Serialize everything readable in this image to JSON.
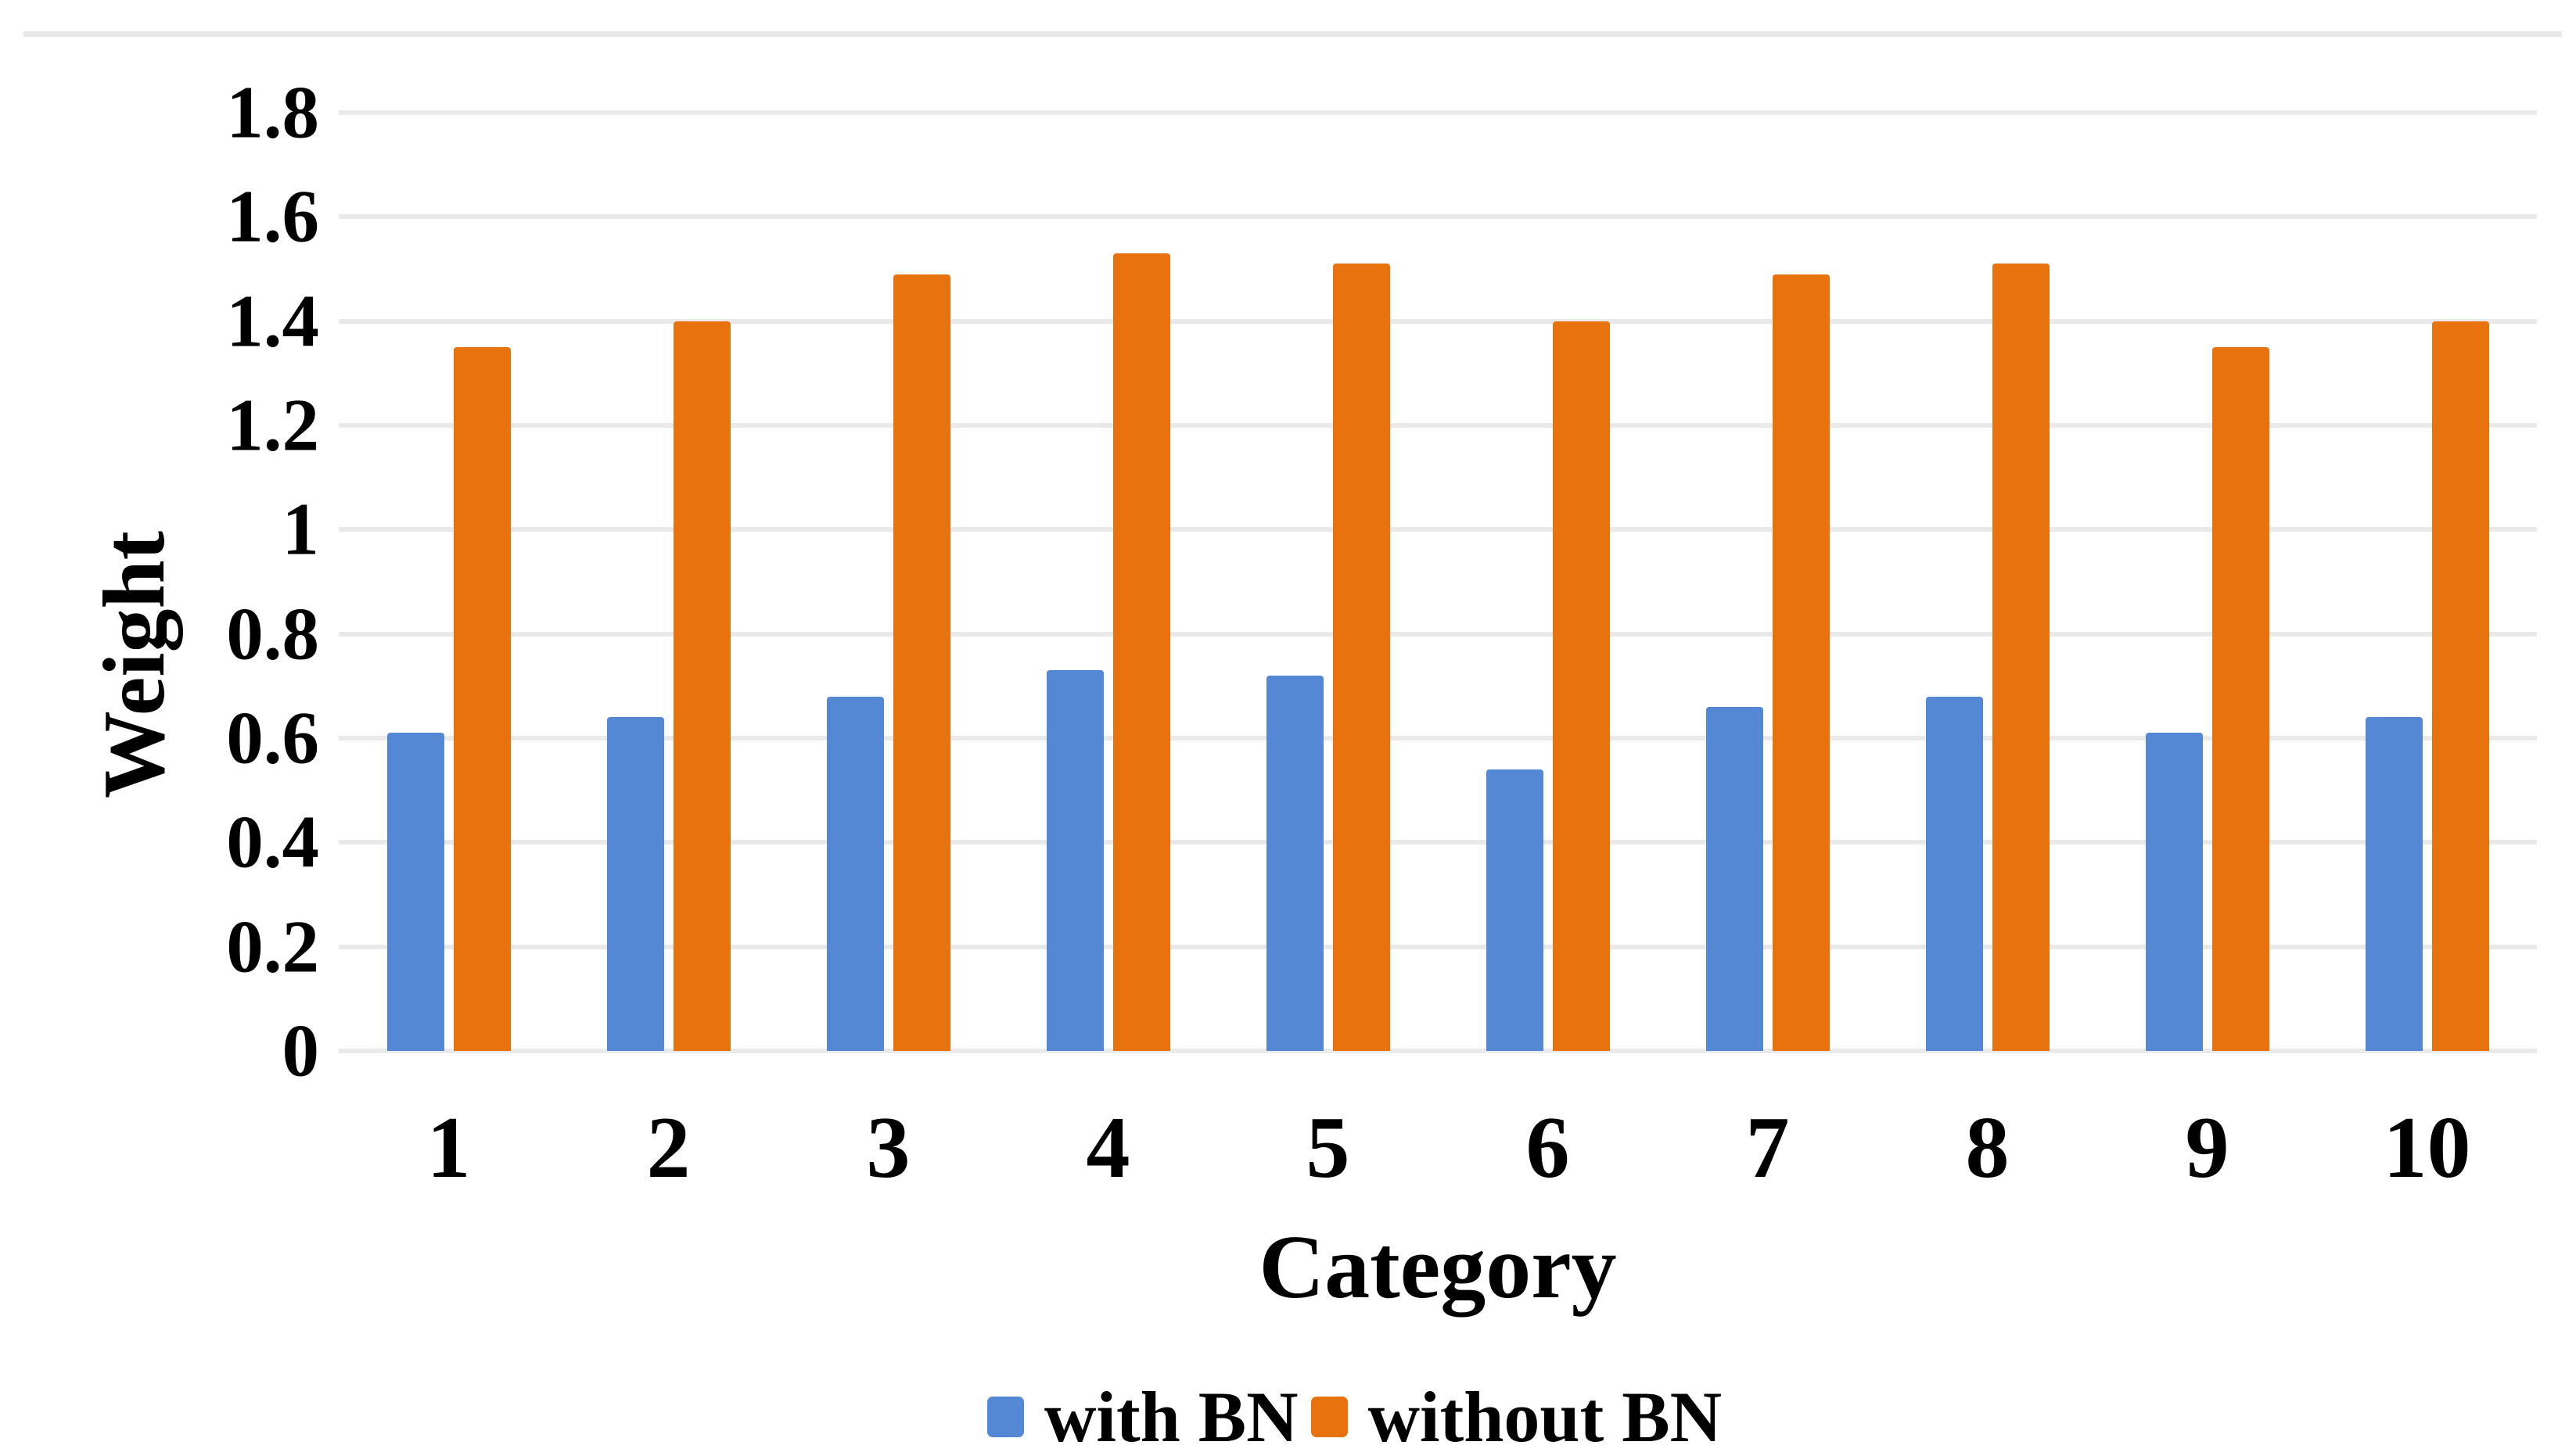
{
  "figure": {
    "background": "#ffffff",
    "top_border_color": "#e8e8e8",
    "text_color": "#000000"
  },
  "chart_data": {
    "type": "bar",
    "title": "",
    "xlabel": "Category",
    "ylabel": "Weight",
    "categories": [
      "1",
      "2",
      "3",
      "4",
      "5",
      "6",
      "7",
      "8",
      "9",
      "10"
    ],
    "series": [
      {
        "name": "with BN",
        "color": "#5588D4",
        "values": [
          0.61,
          0.64,
          0.68,
          0.73,
          0.72,
          0.54,
          0.66,
          0.68,
          0.61,
          0.64
        ]
      },
      {
        "name": "without BN",
        "color": "#E8720E",
        "values": [
          1.35,
          1.4,
          1.49,
          1.53,
          1.51,
          1.4,
          1.49,
          1.51,
          1.35,
          1.4
        ]
      }
    ],
    "ylim": [
      0,
      1.8
    ],
    "ytick_labels": [
      "1.8",
      "1.6",
      "1.4",
      "1.2",
      "1",
      "0.8",
      "0.6",
      "0.4",
      "0.2",
      "0"
    ],
    "ytick_values": [
      1.8,
      1.6,
      1.4,
      1.2,
      1.0,
      0.8,
      0.6,
      0.4,
      0.2,
      0
    ],
    "grid": "horizontal",
    "gridline_color": "#e9e9e9",
    "legend_position": "bottom-center"
  }
}
